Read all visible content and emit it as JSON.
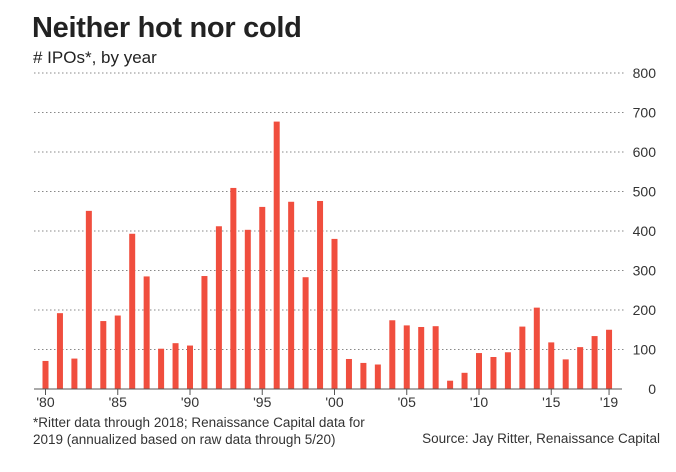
{
  "chart_data": {
    "type": "bar",
    "title": "Neither hot nor cold",
    "subtitle": "# IPOs*, by year",
    "categories": [
      1980,
      1981,
      1982,
      1983,
      1984,
      1985,
      1986,
      1987,
      1988,
      1989,
      1990,
      1991,
      1992,
      1993,
      1994,
      1995,
      1996,
      1997,
      1998,
      1999,
      2000,
      2001,
      2002,
      2003,
      2004,
      2005,
      2006,
      2007,
      2008,
      2009,
      2010,
      2011,
      2012,
      2013,
      2014,
      2015,
      2016,
      2017,
      2018,
      2019
    ],
    "values": [
      71,
      192,
      77,
      451,
      172,
      186,
      393,
      285,
      102,
      116,
      110,
      286,
      412,
      509,
      403,
      461,
      677,
      474,
      283,
      476,
      380,
      76,
      66,
      62,
      174,
      161,
      157,
      159,
      21,
      41,
      91,
      81,
      93,
      158,
      206,
      118,
      75,
      106,
      134,
      150
    ],
    "x_tick_labels": [
      "'80",
      "'85",
      "'90",
      "'95",
      "'00",
      "'05",
      "'10",
      "'15",
      "'19"
    ],
    "x_tick_years": [
      1980,
      1985,
      1990,
      1995,
      2000,
      2005,
      2010,
      2015,
      2019
    ],
    "y_ticks": [
      0,
      100,
      200,
      300,
      400,
      500,
      600,
      700,
      800
    ],
    "ylim": [
      0,
      800
    ],
    "grid": true,
    "bar_color": "#f04e3e",
    "grid_color": "#888888",
    "note": "*Ritter data through 2018; Renaissance Capital data for 2019 (annualized based on raw data through 5/20)",
    "source": "Source: Jay Ritter, Renaissance Capital"
  }
}
